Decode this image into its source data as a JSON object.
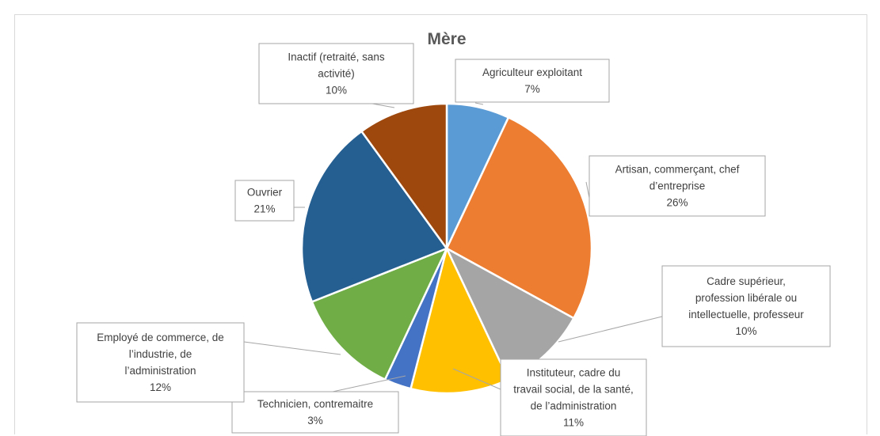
{
  "chart_data": {
    "type": "pie",
    "title": "Mère",
    "categories": [
      "Agriculteur exploitant",
      "Artisan, commerçant, chef d’entreprise",
      "Cadre supérieur, profession libérale ou intellectuelle, professeur",
      "Instituteur, cadre du travail social, de la santé, de l’administration",
      "Technicien, contremaitre",
      "Employé de commerce, de l’industrie, de l’administration",
      "Ouvrier",
      "Inactif (retraité, sans activité)"
    ],
    "values": [
      7,
      26,
      10,
      11,
      3,
      12,
      21,
      10
    ],
    "labels": [
      "7%",
      "26%",
      "10%",
      "11%",
      "3%",
      "12%",
      "21%",
      "10%"
    ],
    "colors": [
      "#5b9bd5",
      "#ed7d31",
      "#a5a5a5",
      "#ffc000",
      "#4472c4",
      "#70ad47",
      "#255e91",
      "#9e480e"
    ],
    "callout_lines": [
      [
        "Agriculteur exploitant"
      ],
      [
        "Artisan, commerçant, chef",
        "d’entreprise"
      ],
      [
        "Cadre supérieur,",
        "profession libérale ou",
        "intellectuelle, professeur"
      ],
      [
        "Instituteur, cadre du",
        "travail social, de la santé,",
        "de l’administration"
      ],
      [
        "Technicien, contremaitre"
      ],
      [
        "Employé de commerce, de",
        "l’industrie, de",
        "l’administration"
      ],
      [
        "Ouvrier"
      ],
      [
        "Inactif (retraité, sans",
        "activité)"
      ]
    ],
    "legend": "none"
  }
}
